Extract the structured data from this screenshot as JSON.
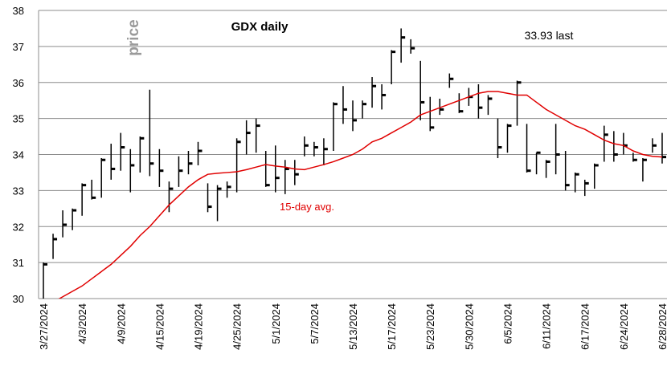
{
  "chart_data": {
    "type": "ohlc",
    "title": "GDX daily",
    "y_label": "price",
    "annotations": [
      "33.93 last"
    ],
    "categories": [
      "3/27/2024",
      null,
      null,
      null,
      "4/3/2024",
      null,
      null,
      null,
      "4/9/2024",
      null,
      null,
      null,
      "4/15/2024",
      null,
      null,
      null,
      "4/19/2024",
      null,
      null,
      null,
      "4/25/2024",
      null,
      null,
      null,
      "5/1/2024",
      null,
      null,
      null,
      "5/7/2024",
      null,
      null,
      null,
      "5/13/2024",
      null,
      null,
      null,
      "5/17/2024",
      null,
      null,
      null,
      "5/23/2024",
      null,
      null,
      null,
      "5/30/2024",
      null,
      null,
      null,
      "6/5/2024",
      null,
      null,
      null,
      "6/11/2024",
      null,
      null,
      null,
      "6/17/2024",
      null,
      null,
      null,
      "6/24/2024",
      null,
      null,
      null,
      "6/28/2024"
    ],
    "high": [
      31.0,
      31.8,
      32.45,
      32.5,
      33.2,
      33.3,
      33.9,
      34.3,
      34.6,
      34.15,
      34.5,
      35.8,
      34.15,
      33.25,
      33.95,
      34.1,
      34.35,
      33.2,
      33.15,
      33.25,
      34.45,
      34.95,
      35.0,
      34.1,
      34.25,
      33.85,
      33.85,
      34.5,
      34.35,
      34.45,
      35.45,
      35.9,
      35.5,
      35.5,
      36.15,
      35.95,
      36.9,
      37.5,
      37.2,
      36.6,
      35.6,
      35.55,
      36.25,
      35.7,
      35.85,
      35.95,
      35.65,
      35.0,
      34.85,
      36.05,
      34.85,
      34.05,
      33.85,
      34.85,
      34.1,
      33.5,
      33.3,
      33.75,
      34.8,
      34.65,
      34.6,
      34.05,
      33.9,
      34.45,
      34.6
    ],
    "low": [
      30.0,
      31.1,
      31.7,
      31.9,
      32.3,
      32.75,
      32.8,
      33.3,
      33.55,
      32.95,
      33.5,
      33.4,
      33.1,
      32.4,
      33.1,
      33.45,
      33.7,
      32.4,
      32.15,
      32.8,
      32.95,
      34.0,
      34.05,
      33.1,
      32.95,
      32.9,
      33.15,
      33.95,
      33.95,
      33.7,
      34.1,
      34.85,
      34.65,
      35.0,
      35.3,
      35.25,
      35.95,
      36.55,
      36.8,
      34.95,
      34.65,
      35.1,
      35.85,
      35.15,
      35.35,
      35.0,
      35.1,
      33.9,
      34.05,
      34.8,
      33.5,
      33.45,
      33.35,
      33.45,
      33.0,
      32.95,
      32.85,
      33.05,
      33.8,
      33.8,
      34.0,
      33.8,
      33.25,
      34.05,
      33.75
    ],
    "close": [
      30.95,
      31.65,
      32.05,
      32.45,
      33.15,
      32.8,
      33.85,
      33.6,
      34.2,
      33.7,
      34.45,
      33.75,
      33.55,
      33.05,
      33.55,
      33.75,
      34.1,
      32.55,
      33.05,
      33.1,
      34.35,
      34.6,
      34.8,
      33.15,
      33.35,
      33.6,
      33.45,
      34.25,
      34.2,
      34.15,
      35.4,
      35.25,
      34.95,
      35.4,
      35.9,
      35.65,
      36.85,
      37.25,
      36.95,
      35.45,
      34.75,
      35.25,
      36.1,
      35.2,
      35.6,
      35.3,
      35.55,
      34.2,
      34.8,
      36.0,
      33.55,
      34.05,
      33.8,
      34.0,
      33.15,
      33.45,
      33.2,
      33.7,
      34.55,
      34.0,
      34.25,
      33.85,
      33.85,
      34.25,
      33.93
    ],
    "bar_color": "#000000",
    "average": {
      "name": "15-day avg.",
      "color": "#e00000",
      "values": [
        null,
        29.9,
        30.05,
        30.2,
        30.35,
        30.55,
        30.75,
        30.95,
        31.2,
        31.45,
        31.75,
        32.0,
        32.3,
        32.6,
        32.85,
        33.1,
        33.3,
        33.45,
        33.48,
        33.5,
        33.52,
        33.58,
        33.65,
        33.72,
        33.68,
        33.65,
        33.6,
        33.58,
        33.65,
        33.72,
        33.8,
        33.9,
        34.0,
        34.15,
        34.35,
        34.45,
        34.6,
        34.75,
        34.9,
        35.1,
        35.2,
        35.3,
        35.4,
        35.5,
        35.6,
        35.7,
        35.75,
        35.75,
        35.7,
        35.65,
        35.65,
        35.45,
        35.25,
        35.1,
        34.95,
        34.8,
        34.7,
        34.55,
        34.4,
        34.3,
        34.25,
        34.1,
        34.0,
        33.95,
        33.93
      ]
    },
    "ylim": [
      30,
      38
    ],
    "yticks": [
      30,
      31,
      32,
      33,
      34,
      35,
      36,
      37,
      38
    ],
    "grid": true
  }
}
